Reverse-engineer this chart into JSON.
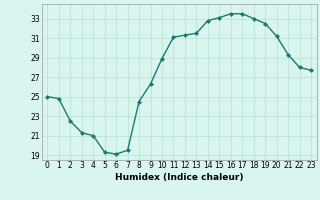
{
  "x": [
    0,
    1,
    2,
    3,
    4,
    5,
    6,
    7,
    8,
    9,
    10,
    11,
    12,
    13,
    14,
    15,
    16,
    17,
    18,
    19,
    20,
    21,
    22,
    23
  ],
  "y": [
    25.0,
    24.8,
    22.5,
    21.3,
    21.0,
    19.3,
    19.1,
    19.5,
    24.5,
    26.3,
    28.9,
    31.1,
    31.3,
    31.5,
    32.8,
    33.1,
    33.5,
    33.5,
    33.0,
    32.5,
    31.2,
    29.3,
    28.0,
    27.7
  ],
  "line_color": "#1a7a6e",
  "marker": "D",
  "markersize": 2.0,
  "bg_color": "#d8f5f0",
  "grid_color": "#b8ddd8",
  "xlabel": "Humidex (Indice chaleur)",
  "xlim": [
    -0.5,
    23.5
  ],
  "ylim": [
    18.5,
    34.5
  ],
  "yticks": [
    19,
    21,
    23,
    25,
    27,
    29,
    31,
    33
  ],
  "xticks": [
    0,
    1,
    2,
    3,
    4,
    5,
    6,
    7,
    8,
    9,
    10,
    11,
    12,
    13,
    14,
    15,
    16,
    17,
    18,
    19,
    20,
    21,
    22,
    23
  ],
  "tick_fontsize": 5.5,
  "label_fontsize": 6.5,
  "linewidth": 1.0
}
